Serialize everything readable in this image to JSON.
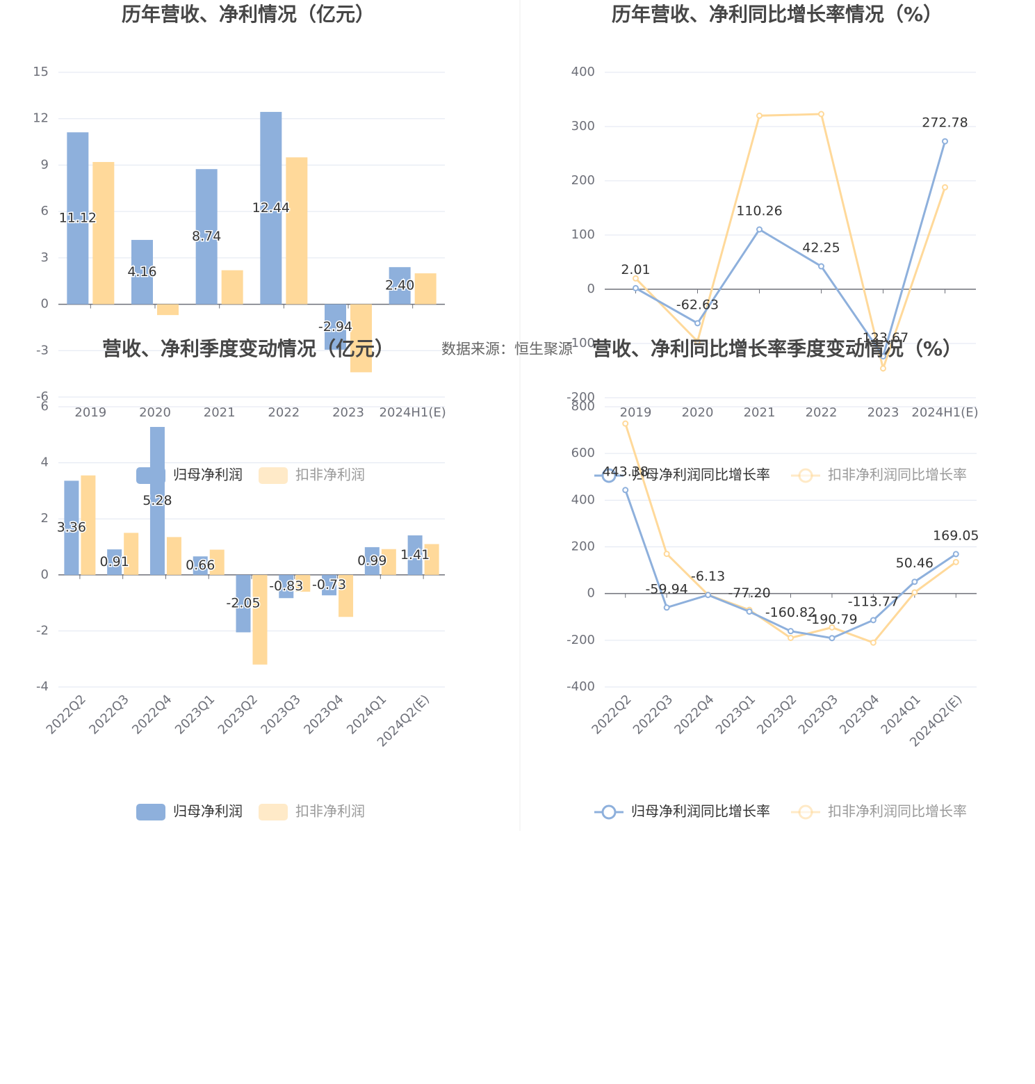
{
  "chart_data": [
    {
      "type": "bar",
      "title": "历年营收、净利情况（亿元）",
      "categories": [
        "2019",
        "2020",
        "2021",
        "2022",
        "2023",
        "2024H1(E)"
      ],
      "series": [
        {
          "name": "归母净利润",
          "color": "#8eb0dc",
          "labels": true,
          "values": [
            11.12,
            4.16,
            8.74,
            12.44,
            -2.94,
            2.4
          ],
          "value_labels": [
            "11.12",
            "4.16",
            "8.74",
            "12.44",
            "-2.94",
            "2.40"
          ]
        },
        {
          "name": "扣非净利润",
          "color": "#ffd99a",
          "labels": false,
          "values": [
            9.2,
            -0.7,
            2.2,
            9.5,
            -4.4,
            2.0
          ]
        }
      ],
      "ylim": [
        -6,
        15
      ],
      "yticks": [
        -6,
        -3,
        0,
        3,
        6,
        9,
        12,
        15
      ],
      "grid": true
    },
    {
      "type": "line",
      "title": "历年营收、净利同比增长率情况（%）",
      "categories": [
        "2019",
        "2020",
        "2021",
        "2022",
        "2023",
        "2024H1(E)"
      ],
      "series": [
        {
          "name": "归母净利润同比增长率",
          "color": "#8eb0dc",
          "labels": true,
          "values": [
            2.01,
            -62.63,
            110.26,
            42.25,
            -123.67,
            272.78
          ]
        },
        {
          "name": "扣非净利润同比增长率",
          "color": "#ffd99a",
          "labels": false,
          "values": [
            20,
            -96,
            320,
            323,
            -146,
            188
          ]
        }
      ],
      "ylim": [
        -200,
        400
      ],
      "yticks": [
        -200,
        -100,
        0,
        100,
        200,
        300,
        400
      ],
      "grid": true
    },
    {
      "type": "bar",
      "title": "营收、净利季度变动情况（亿元）",
      "categories": [
        "2022Q2",
        "2022Q3",
        "2022Q4",
        "2023Q1",
        "2023Q2",
        "2023Q3",
        "2023Q4",
        "2024Q1",
        "2024Q2(E)"
      ],
      "series": [
        {
          "name": "归母净利润",
          "color": "#8eb0dc",
          "labels": true,
          "values": [
            3.36,
            0.91,
            5.28,
            0.66,
            -2.05,
            -0.83,
            -0.73,
            0.99,
            1.41
          ]
        },
        {
          "name": "扣非净利润",
          "color": "#ffd99a",
          "labels": false,
          "values": [
            3.55,
            1.5,
            1.35,
            0.9,
            -3.2,
            -0.6,
            -1.5,
            0.92,
            1.1
          ]
        }
      ],
      "ylim": [
        -4,
        6
      ],
      "yticks": [
        -4,
        -2,
        0,
        2,
        4,
        6
      ],
      "grid": true
    },
    {
      "type": "line",
      "title": "营收、净利同比增长率季度变动情况（%）",
      "categories": [
        "2022Q2",
        "2022Q3",
        "2022Q4",
        "2023Q1",
        "2023Q2",
        "2023Q3",
        "2023Q4",
        "2024Q1",
        "2024Q2(E)"
      ],
      "series": [
        {
          "name": "归母净利润同比增长率",
          "color": "#8eb0dc",
          "labels": true,
          "values": [
            443.38,
            -59.94,
            -6.13,
            -77.2,
            -160.82,
            -190.79,
            -113.77,
            50.46,
            169.05
          ],
          "value_labels": [
            "443.38",
            "-59.94",
            "-6.13",
            "-77.20",
            "-160.82",
            "-190.79",
            "-113.77",
            "50.46",
            "169.05"
          ]
        },
        {
          "name": "扣非净利润同比增长率",
          "color": "#ffd99a",
          "labels": false,
          "values": [
            728,
            170,
            -5,
            -70,
            -190,
            -145,
            -210,
            5,
            135
          ]
        }
      ],
      "ylim": [
        -400,
        800
      ],
      "yticks": [
        -400,
        -200,
        0,
        200,
        400,
        600,
        800
      ],
      "grid": true
    }
  ],
  "source": "数据来源：恒生聚源"
}
